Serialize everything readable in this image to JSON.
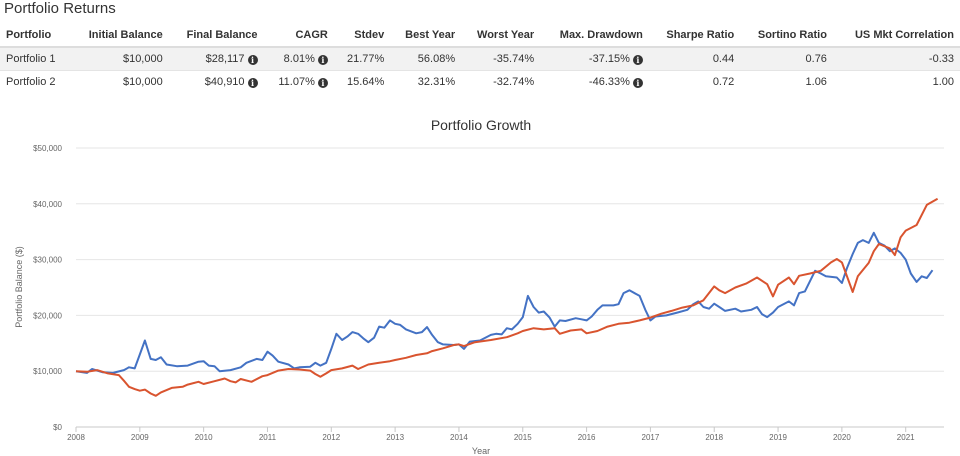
{
  "page": {
    "section_title": "Portfolio Returns"
  },
  "table": {
    "headers": [
      "Portfolio",
      "Initial Balance",
      "Final Balance",
      "CAGR",
      "Stdev",
      "Best Year",
      "Worst Year",
      "Max. Drawdown",
      "Sharpe Ratio",
      "Sortino Ratio",
      "US Mkt Correlation"
    ],
    "rows": [
      {
        "name": "Portfolio 1",
        "initial": "$10,000",
        "final": "$28,117",
        "cagr": "8.01%",
        "stdev": "21.77%",
        "best": "56.08%",
        "worst": "-35.74%",
        "drawdown": "-37.15%",
        "sharpe": "0.44",
        "sortino": "0.76",
        "corr": "-0.33"
      },
      {
        "name": "Portfolio 2",
        "initial": "$10,000",
        "final": "$40,910",
        "cagr": "11.07%",
        "stdev": "15.64%",
        "best": "32.31%",
        "worst": "-32.74%",
        "drawdown": "-46.33%",
        "sharpe": "0.72",
        "sortino": "1.06",
        "corr": "1.00"
      }
    ],
    "info_icon": "info-circle-icon",
    "info_glyph": "i"
  },
  "chart_data": {
    "type": "line",
    "title": "Portfolio Growth",
    "xlabel": "Year",
    "ylabel": "Portfolio Balance ($)",
    "xlim": [
      2008,
      2021.6
    ],
    "ylim": [
      0,
      50000
    ],
    "x_ticks": [
      2008,
      2009,
      2010,
      2011,
      2012,
      2013,
      2014,
      2015,
      2016,
      2017,
      2018,
      2019,
      2020,
      2021
    ],
    "y_ticks": [
      0,
      10000,
      20000,
      30000,
      40000,
      50000
    ],
    "y_tick_labels": [
      "$0",
      "$10,000",
      "$20,000",
      "$30,000",
      "$40,000",
      "$50,000"
    ],
    "grid": true,
    "series": [
      {
        "name": "Portfolio 1",
        "color": "#4472c4",
        "points": [
          [
            2008.0,
            10000
          ],
          [
            2008.17,
            9700
          ],
          [
            2008.25,
            10400
          ],
          [
            2008.42,
            9800
          ],
          [
            2008.58,
            9700
          ],
          [
            2008.75,
            10200
          ],
          [
            2008.83,
            10700
          ],
          [
            2008.92,
            10500
          ],
          [
            2009.0,
            13000
          ],
          [
            2009.08,
            15500
          ],
          [
            2009.17,
            12200
          ],
          [
            2009.25,
            12000
          ],
          [
            2009.33,
            12500
          ],
          [
            2009.42,
            11200
          ],
          [
            2009.58,
            10900
          ],
          [
            2009.75,
            11000
          ],
          [
            2009.92,
            11700
          ],
          [
            2010.0,
            11800
          ],
          [
            2010.08,
            11000
          ],
          [
            2010.17,
            10900
          ],
          [
            2010.25,
            10000
          ],
          [
            2010.42,
            10200
          ],
          [
            2010.58,
            10700
          ],
          [
            2010.67,
            11500
          ],
          [
            2010.83,
            12200
          ],
          [
            2010.92,
            12000
          ],
          [
            2011.0,
            13500
          ],
          [
            2011.08,
            12800
          ],
          [
            2011.17,
            11700
          ],
          [
            2011.33,
            11200
          ],
          [
            2011.42,
            10500
          ],
          [
            2011.5,
            10700
          ],
          [
            2011.67,
            10800
          ],
          [
            2011.75,
            11500
          ],
          [
            2011.83,
            11000
          ],
          [
            2011.92,
            11500
          ],
          [
            2012.0,
            14000
          ],
          [
            2012.08,
            16700
          ],
          [
            2012.17,
            15600
          ],
          [
            2012.25,
            16200
          ],
          [
            2012.33,
            17000
          ],
          [
            2012.42,
            16700
          ],
          [
            2012.5,
            15900
          ],
          [
            2012.58,
            15200
          ],
          [
            2012.67,
            16000
          ],
          [
            2012.75,
            18000
          ],
          [
            2012.83,
            17800
          ],
          [
            2012.92,
            19100
          ],
          [
            2013.0,
            18500
          ],
          [
            2013.08,
            18300
          ],
          [
            2013.17,
            17500
          ],
          [
            2013.33,
            16800
          ],
          [
            2013.42,
            17000
          ],
          [
            2013.5,
            17900
          ],
          [
            2013.58,
            16500
          ],
          [
            2013.67,
            15200
          ],
          [
            2013.75,
            14800
          ],
          [
            2013.92,
            14700
          ],
          [
            2014.0,
            14800
          ],
          [
            2014.08,
            14000
          ],
          [
            2014.17,
            15300
          ],
          [
            2014.33,
            15500
          ],
          [
            2014.5,
            16500
          ],
          [
            2014.58,
            16700
          ],
          [
            2014.67,
            16600
          ],
          [
            2014.75,
            17700
          ],
          [
            2014.83,
            17500
          ],
          [
            2014.92,
            18500
          ],
          [
            2015.0,
            19700
          ],
          [
            2015.08,
            23500
          ],
          [
            2015.17,
            21500
          ],
          [
            2015.25,
            20500
          ],
          [
            2015.33,
            20700
          ],
          [
            2015.42,
            19600
          ],
          [
            2015.5,
            18000
          ],
          [
            2015.58,
            19100
          ],
          [
            2015.67,
            19000
          ],
          [
            2015.83,
            19500
          ],
          [
            2015.92,
            19300
          ],
          [
            2016.0,
            19100
          ],
          [
            2016.08,
            19800
          ],
          [
            2016.17,
            21000
          ],
          [
            2016.25,
            21800
          ],
          [
            2016.42,
            21800
          ],
          [
            2016.5,
            22000
          ],
          [
            2016.58,
            24000
          ],
          [
            2016.67,
            24500
          ],
          [
            2016.83,
            23500
          ],
          [
            2016.92,
            21000
          ],
          [
            2017.0,
            19100
          ],
          [
            2017.08,
            19800
          ],
          [
            2017.25,
            20000
          ],
          [
            2017.42,
            20500
          ],
          [
            2017.58,
            21000
          ],
          [
            2017.67,
            22000
          ],
          [
            2017.75,
            22500
          ],
          [
            2017.83,
            21500
          ],
          [
            2017.92,
            21200
          ],
          [
            2018.0,
            22100
          ],
          [
            2018.08,
            21500
          ],
          [
            2018.17,
            20800
          ],
          [
            2018.33,
            21200
          ],
          [
            2018.42,
            20700
          ],
          [
            2018.58,
            21000
          ],
          [
            2018.67,
            21500
          ],
          [
            2018.75,
            20200
          ],
          [
            2018.83,
            19700
          ],
          [
            2018.92,
            20500
          ],
          [
            2019.0,
            21500
          ],
          [
            2019.17,
            22500
          ],
          [
            2019.25,
            21800
          ],
          [
            2019.33,
            24000
          ],
          [
            2019.42,
            24300
          ],
          [
            2019.58,
            28000
          ],
          [
            2019.67,
            27500
          ],
          [
            2019.75,
            27000
          ],
          [
            2019.92,
            26800
          ],
          [
            2020.0,
            25800
          ],
          [
            2020.08,
            28500
          ],
          [
            2020.17,
            31000
          ],
          [
            2020.25,
            33000
          ],
          [
            2020.33,
            33500
          ],
          [
            2020.42,
            33000
          ],
          [
            2020.5,
            34800
          ],
          [
            2020.58,
            33000
          ],
          [
            2020.67,
            32500
          ],
          [
            2020.75,
            31500
          ],
          [
            2020.83,
            32000
          ],
          [
            2020.92,
            31200
          ],
          [
            2021.0,
            30000
          ],
          [
            2021.08,
            27500
          ],
          [
            2021.17,
            26000
          ],
          [
            2021.25,
            27000
          ],
          [
            2021.33,
            26700
          ],
          [
            2021.42,
            28100
          ]
        ]
      },
      {
        "name": "Portfolio 2",
        "color": "#d9542f",
        "points": [
          [
            2008.0,
            10000
          ],
          [
            2008.17,
            9900
          ],
          [
            2008.33,
            10200
          ],
          [
            2008.5,
            9600
          ],
          [
            2008.67,
            9300
          ],
          [
            2008.75,
            8300
          ],
          [
            2008.83,
            7200
          ],
          [
            2008.92,
            6800
          ],
          [
            2009.0,
            6500
          ],
          [
            2009.08,
            6700
          ],
          [
            2009.17,
            6000
          ],
          [
            2009.25,
            5600
          ],
          [
            2009.33,
            6200
          ],
          [
            2009.5,
            7000
          ],
          [
            2009.67,
            7200
          ],
          [
            2009.75,
            7600
          ],
          [
            2009.92,
            8100
          ],
          [
            2010.0,
            7700
          ],
          [
            2010.17,
            8200
          ],
          [
            2010.33,
            8700
          ],
          [
            2010.42,
            8200
          ],
          [
            2010.5,
            8000
          ],
          [
            2010.58,
            8600
          ],
          [
            2010.75,
            8100
          ],
          [
            2010.92,
            9100
          ],
          [
            2011.0,
            9300
          ],
          [
            2011.17,
            10100
          ],
          [
            2011.33,
            10400
          ],
          [
            2011.5,
            10300
          ],
          [
            2011.67,
            10100
          ],
          [
            2011.75,
            9500
          ],
          [
            2011.83,
            9000
          ],
          [
            2011.92,
            9600
          ],
          [
            2012.0,
            10200
          ],
          [
            2012.17,
            10500
          ],
          [
            2012.33,
            11000
          ],
          [
            2012.42,
            10400
          ],
          [
            2012.58,
            11200
          ],
          [
            2012.75,
            11500
          ],
          [
            2012.92,
            11800
          ],
          [
            2013.0,
            12000
          ],
          [
            2013.17,
            12400
          ],
          [
            2013.33,
            12900
          ],
          [
            2013.5,
            13200
          ],
          [
            2013.58,
            13600
          ],
          [
            2013.75,
            14100
          ],
          [
            2013.92,
            14700
          ],
          [
            2014.0,
            14800
          ],
          [
            2014.08,
            14500
          ],
          [
            2014.25,
            15200
          ],
          [
            2014.5,
            15600
          ],
          [
            2014.75,
            16100
          ],
          [
            2014.92,
            16800
          ],
          [
            2015.0,
            17200
          ],
          [
            2015.17,
            17700
          ],
          [
            2015.33,
            17500
          ],
          [
            2015.5,
            17700
          ],
          [
            2015.58,
            16700
          ],
          [
            2015.75,
            17300
          ],
          [
            2015.92,
            17500
          ],
          [
            2016.0,
            16800
          ],
          [
            2016.17,
            17200
          ],
          [
            2016.33,
            18000
          ],
          [
            2016.5,
            18500
          ],
          [
            2016.67,
            18700
          ],
          [
            2016.83,
            19100
          ],
          [
            2017.0,
            19600
          ],
          [
            2017.17,
            20300
          ],
          [
            2017.33,
            20800
          ],
          [
            2017.5,
            21400
          ],
          [
            2017.67,
            21800
          ],
          [
            2017.83,
            22700
          ],
          [
            2018.0,
            25200
          ],
          [
            2018.08,
            24500
          ],
          [
            2018.17,
            24000
          ],
          [
            2018.33,
            25000
          ],
          [
            2018.5,
            25700
          ],
          [
            2018.67,
            26800
          ],
          [
            2018.83,
            25600
          ],
          [
            2018.92,
            23400
          ],
          [
            2019.0,
            25500
          ],
          [
            2019.17,
            26800
          ],
          [
            2019.25,
            25600
          ],
          [
            2019.33,
            27100
          ],
          [
            2019.5,
            27500
          ],
          [
            2019.67,
            28000
          ],
          [
            2019.83,
            29500
          ],
          [
            2019.92,
            30100
          ],
          [
            2020.0,
            29500
          ],
          [
            2020.17,
            24200
          ],
          [
            2020.25,
            27000
          ],
          [
            2020.42,
            29400
          ],
          [
            2020.5,
            31500
          ],
          [
            2020.58,
            32800
          ],
          [
            2020.75,
            32000
          ],
          [
            2020.83,
            30800
          ],
          [
            2020.92,
            34000
          ],
          [
            2021.0,
            35200
          ],
          [
            2021.17,
            36200
          ],
          [
            2021.33,
            39800
          ],
          [
            2021.5,
            40910
          ]
        ]
      }
    ]
  }
}
